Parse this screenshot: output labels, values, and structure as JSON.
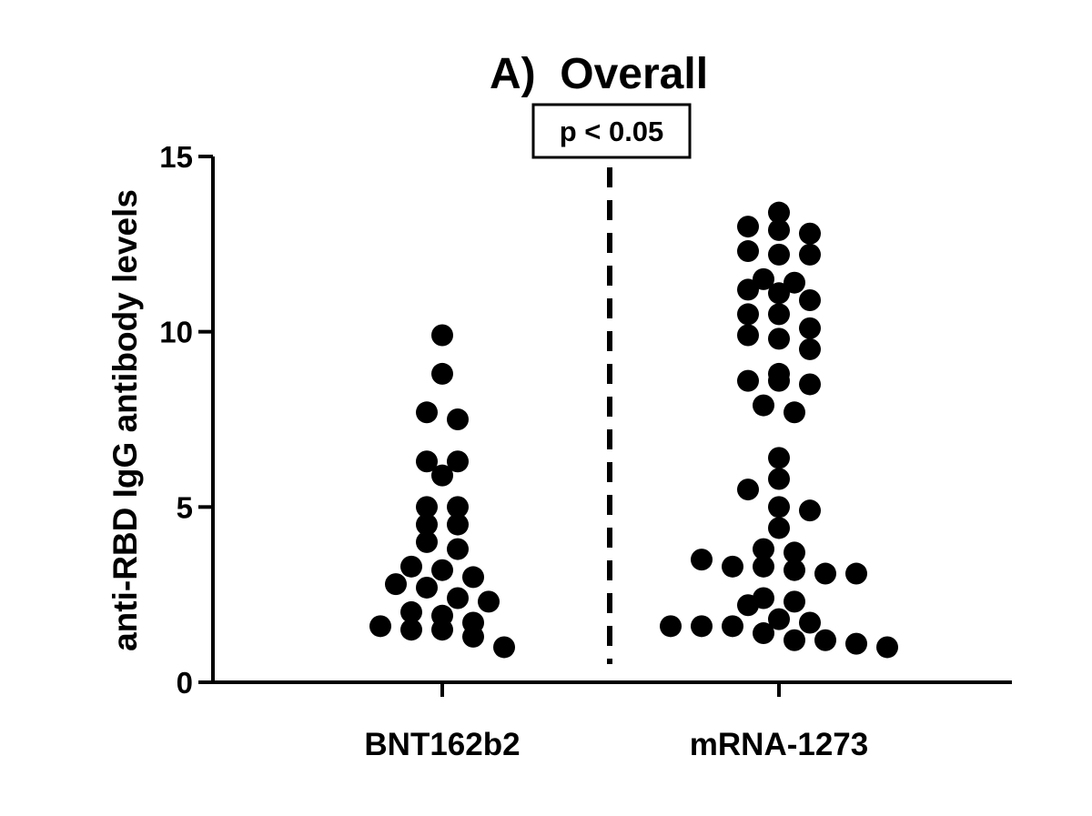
{
  "chart_data": {
    "type": "scatter",
    "title": "A)  Overall",
    "annotation": "p < 0.05",
    "ylabel": "anti-RBD IgG antibody levels",
    "xlabel": "",
    "ylim": [
      0,
      15
    ],
    "yticks": [
      0,
      5,
      10,
      15
    ],
    "grid": false,
    "legend": "none",
    "categories": [
      "BNT162b2",
      "mRNA-1273"
    ],
    "point_color": "#000000",
    "series": [
      {
        "category": "BNT162b2",
        "values": [
          9.9,
          8.8,
          7.7,
          7.5,
          6.3,
          6.3,
          5.9,
          5.0,
          5.0,
          4.5,
          4.5,
          4.0,
          3.8,
          3.3,
          3.2,
          3.0,
          2.8,
          2.7,
          2.4,
          2.3,
          2.0,
          1.9,
          1.7,
          1.6,
          1.5,
          1.5,
          1.3,
          1.0
        ]
      },
      {
        "category": "mRNA-1273",
        "values": [
          13.4,
          13.0,
          12.9,
          12.8,
          12.3,
          12.2,
          12.2,
          11.5,
          11.4,
          11.2,
          11.1,
          10.9,
          10.5,
          10.5,
          10.1,
          9.9,
          9.8,
          9.5,
          8.8,
          8.6,
          8.6,
          8.5,
          7.9,
          7.7,
          6.4,
          5.8,
          5.5,
          5.0,
          4.9,
          4.4,
          3.8,
          3.7,
          3.5,
          3.3,
          3.3,
          3.2,
          3.1,
          3.1,
          2.4,
          2.3,
          2.2,
          1.8,
          1.7,
          1.6,
          1.6,
          1.6,
          1.4,
          1.2,
          1.2,
          1.1,
          1.0
        ]
      }
    ]
  }
}
